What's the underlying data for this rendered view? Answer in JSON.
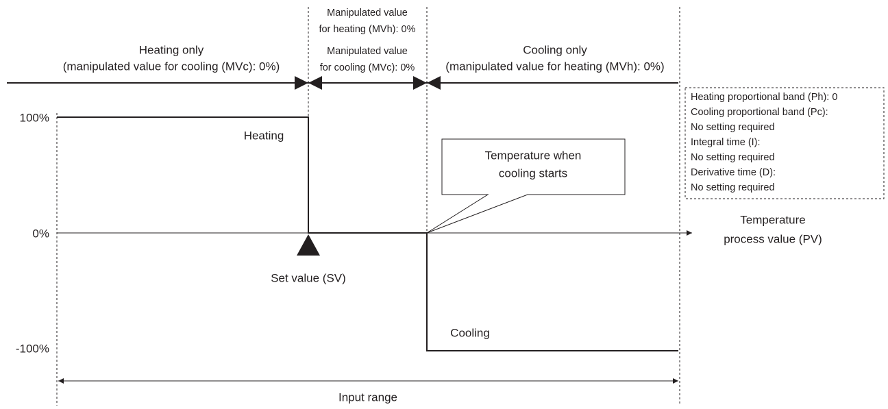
{
  "regions": [
    {
      "lines": [
        "Heating only",
        "(manipulated value for cooling (MVc): 0%)"
      ]
    },
    {
      "lines": [
        "Manipulated value",
        "for heating (MVh): 0%",
        "Manipulated value",
        "for cooling (MVc): 0%"
      ]
    },
    {
      "lines": [
        "Cooling only",
        "(manipulated value for heating (MVh): 0%)"
      ]
    }
  ],
  "axis_labels": [
    "100%",
    "0%",
    "-100%"
  ],
  "curve_labels": [
    "Heating",
    "Cooling"
  ],
  "callout": [
    "Temperature when",
    "cooling starts"
  ],
  "x_axis_label": [
    "Temperature",
    "process value (PV)"
  ],
  "set_value": "Set value (SV)",
  "settings": [
    "Heating proportional band (Ph): 0",
    "Cooling proportional band (Pc):",
    "No setting required",
    "Integral time (I):",
    "No setting required",
    "Derivative time (D):",
    "No setting required"
  ],
  "range": "Input range"
}
